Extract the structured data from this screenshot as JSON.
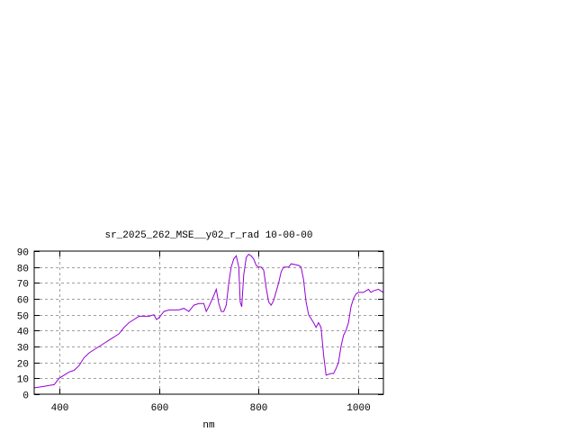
{
  "chart_data": {
    "type": "line",
    "title": "sr_2025_262_MSE__y02_r_rad 10-00-00",
    "xlabel": "nm",
    "ylabel": "",
    "xlim": [
      350,
      1050
    ],
    "ylim": [
      0,
      90
    ],
    "xticks": [
      400,
      600,
      800,
      1000
    ],
    "yticks": [
      0,
      10,
      20,
      30,
      40,
      50,
      60,
      70,
      80,
      90
    ],
    "grid": true,
    "line_color": "#9400d3",
    "x": [
      350,
      360,
      370,
      380,
      390,
      400,
      410,
      420,
      430,
      440,
      450,
      460,
      470,
      480,
      490,
      500,
      510,
      520,
      530,
      540,
      550,
      560,
      570,
      580,
      590,
      595,
      600,
      610,
      620,
      640,
      650,
      660,
      670,
      680,
      690,
      695,
      700,
      710,
      715,
      720,
      725,
      730,
      735,
      740,
      745,
      750,
      755,
      760,
      763,
      766,
      770,
      775,
      780,
      785,
      790,
      795,
      800,
      805,
      810,
      815,
      820,
      825,
      830,
      840,
      845,
      850,
      855,
      860,
      865,
      880,
      885,
      890,
      895,
      900,
      910,
      915,
      920,
      925,
      930,
      935,
      945,
      950,
      955,
      960,
      965,
      970,
      975,
      980,
      985,
      990,
      995,
      1000,
      1010,
      1020,
      1025,
      1030,
      1040,
      1045,
      1050
    ],
    "y": [
      4,
      4.5,
      5,
      5.5,
      6,
      10,
      12,
      14,
      15,
      18,
      23,
      26,
      28,
      30,
      32,
      34,
      36,
      38,
      42,
      45,
      47,
      49,
      49,
      49,
      50,
      47,
      48,
      52,
      53,
      53,
      54,
      52,
      56,
      57,
      57,
      52,
      55,
      62,
      66,
      57,
      52,
      52,
      56,
      70,
      80,
      85,
      87,
      80,
      58,
      55,
      75,
      86,
      88,
      87,
      85,
      81,
      80,
      80,
      78,
      67,
      58,
      56,
      59,
      70,
      77,
      80,
      80,
      80,
      82,
      81,
      80,
      72,
      58,
      50,
      45,
      42,
      45,
      42,
      25,
      12,
      13,
      13,
      16,
      20,
      30,
      37,
      40,
      45,
      55,
      60,
      63,
      64,
      64,
      66,
      64,
      65,
      66,
      65,
      64
    ]
  }
}
